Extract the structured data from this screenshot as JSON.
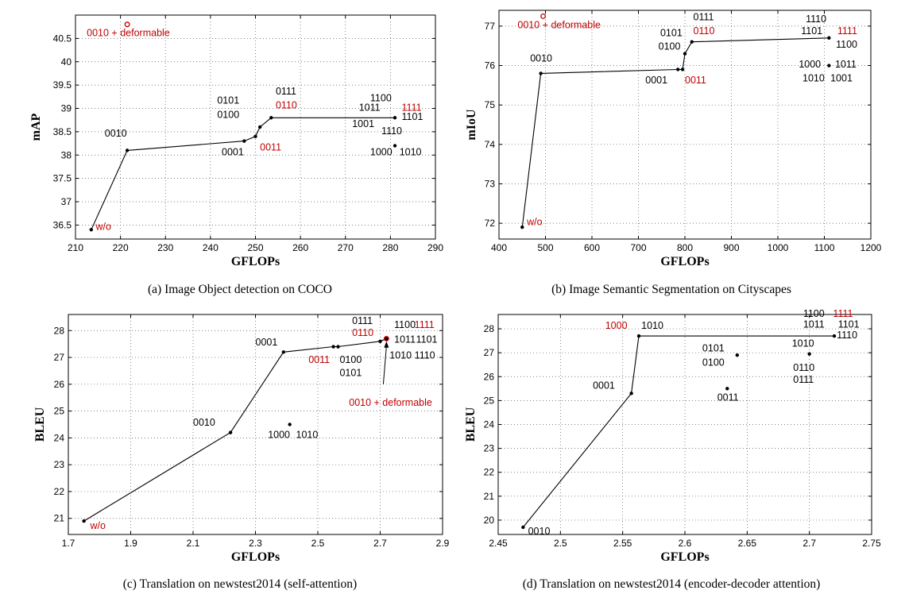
{
  "colors": {
    "black": "#000000",
    "red": "#c00000",
    "grid": "#555555"
  },
  "chart_data": [
    {
      "type": "line",
      "id": "a",
      "caption": "(a)  Image Object detection on COCO",
      "xlabel": "GFLOPs",
      "ylabel": "mAP",
      "xlim": [
        210,
        290
      ],
      "ylim": [
        36.2,
        41.0
      ],
      "xticks": [
        210,
        220,
        230,
        240,
        250,
        260,
        270,
        280,
        290
      ],
      "yticks": [
        36.5,
        37,
        37.5,
        38,
        38.5,
        39,
        39.5,
        40,
        40.5
      ],
      "grid": true,
      "line": [
        [
          213.5,
          36.4
        ],
        [
          221.5,
          38.1
        ],
        [
          247.5,
          38.3
        ],
        [
          250.0,
          38.4
        ],
        [
          251.0,
          38.6
        ],
        [
          253.5,
          38.8
        ],
        [
          281.0,
          38.8
        ]
      ],
      "points": [
        [
          213.5,
          36.4
        ],
        [
          221.5,
          38.1
        ],
        [
          247.5,
          38.3
        ],
        [
          250.0,
          38.4
        ],
        [
          251.0,
          38.6
        ],
        [
          253.5,
          38.8
        ],
        [
          281.0,
          38.8
        ],
        [
          281.0,
          38.2
        ]
      ],
      "special_points": [
        {
          "x": 221.5,
          "y": 40.8,
          "label": "0010 + deformable"
        }
      ],
      "labels": [
        {
          "text": "w/o",
          "x": 214.5,
          "y": 36.4,
          "color": "red"
        },
        {
          "text": "0010 + deformable",
          "x": 212.5,
          "y": 40.55,
          "color": "red"
        },
        {
          "text": "0010",
          "x": 216.5,
          "y": 38.4,
          "color": "black"
        },
        {
          "text": "0001",
          "x": 242.5,
          "y": 38.0,
          "color": "black"
        },
        {
          "text": "0011",
          "x": 251.0,
          "y": 38.1,
          "color": "red"
        },
        {
          "text": "0100",
          "x": 241.5,
          "y": 38.8,
          "color": "black"
        },
        {
          "text": "0101",
          "x": 241.5,
          "y": 39.1,
          "color": "black"
        },
        {
          "text": "0110",
          "x": 254.5,
          "y": 39.0,
          "color": "red"
        },
        {
          "text": "0111",
          "x": 254.5,
          "y": 39.3,
          "color": "black"
        },
        {
          "text": "1100",
          "x": 275.5,
          "y": 39.15,
          "color": "black"
        },
        {
          "text": "1011",
          "x": 273.0,
          "y": 38.95,
          "color": "black"
        },
        {
          "text": "1111",
          "x": 282.5,
          "y": 38.95,
          "color": "red"
        },
        {
          "text": "1001",
          "x": 271.5,
          "y": 38.6,
          "color": "black"
        },
        {
          "text": "1101",
          "x": 282.5,
          "y": 38.75,
          "color": "black"
        },
        {
          "text": "1110",
          "x": 278.0,
          "y": 38.45,
          "color": "black"
        },
        {
          "text": "1000",
          "x": 275.5,
          "y": 38.0,
          "color": "black"
        },
        {
          "text": "1010",
          "x": 282.0,
          "y": 38.0,
          "color": "black"
        }
      ]
    },
    {
      "type": "line",
      "id": "b",
      "caption": "(b)  Image Semantic Segmentation on Cityscapes",
      "xlabel": "GFLOPs",
      "ylabel": "mIoU",
      "xlim": [
        400,
        1200
      ],
      "ylim": [
        71.6,
        77.4
      ],
      "xticks": [
        400,
        500,
        600,
        700,
        800,
        900,
        1000,
        1100,
        1200
      ],
      "yticks": [
        72,
        73,
        74,
        75,
        76,
        77
      ],
      "grid": true,
      "line": [
        [
          450,
          71.9
        ],
        [
          490,
          75.8
        ],
        [
          785,
          75.9
        ],
        [
          795,
          75.9
        ],
        [
          800,
          76.3
        ],
        [
          815,
          76.6
        ],
        [
          1110,
          76.7
        ]
      ],
      "points": [
        [
          450,
          71.9
        ],
        [
          490,
          75.8
        ],
        [
          785,
          75.9
        ],
        [
          795,
          75.9
        ],
        [
          800,
          76.3
        ],
        [
          815,
          76.6
        ],
        [
          1110,
          76.7
        ],
        [
          1110,
          76.0
        ]
      ],
      "special_points": [
        {
          "x": 495,
          "y": 77.25,
          "label": "0010 + deformable"
        }
      ],
      "labels": [
        {
          "text": "w/o",
          "x": 460,
          "y": 71.95,
          "color": "red"
        },
        {
          "text": "0010 + deformable",
          "x": 440,
          "y": 76.95,
          "color": "red"
        },
        {
          "text": "0010",
          "x": 467,
          "y": 76.1,
          "color": "black"
        },
        {
          "text": "0001",
          "x": 715,
          "y": 75.55,
          "color": "black"
        },
        {
          "text": "0011",
          "x": 800,
          "y": 75.55,
          "color": "red"
        },
        {
          "text": "0100",
          "x": 743,
          "y": 76.4,
          "color": "black"
        },
        {
          "text": "0101",
          "x": 747,
          "y": 76.75,
          "color": "black"
        },
        {
          "text": "0110",
          "x": 818,
          "y": 76.8,
          "color": "red"
        },
        {
          "text": "0111",
          "x": 818,
          "y": 77.15,
          "color": "black"
        },
        {
          "text": "1110",
          "x": 1060,
          "y": 77.1,
          "color": "black"
        },
        {
          "text": "1101",
          "x": 1050,
          "y": 76.8,
          "color": "black"
        },
        {
          "text": "1111",
          "x": 1128,
          "y": 76.8,
          "color": "red"
        },
        {
          "text": "1100",
          "x": 1125,
          "y": 76.45,
          "color": "black"
        },
        {
          "text": "1000",
          "x": 1045,
          "y": 75.95,
          "color": "black"
        },
        {
          "text": "1011",
          "x": 1123,
          "y": 75.95,
          "color": "black"
        },
        {
          "text": "1010",
          "x": 1053,
          "y": 75.6,
          "color": "black"
        },
        {
          "text": "1001",
          "x": 1113,
          "y": 75.6,
          "color": "black"
        }
      ]
    },
    {
      "type": "line",
      "id": "c",
      "caption": "(c)  Translation on newstest2014 (self-attention)",
      "xlabel": "GFLOPs",
      "ylabel": "BLEU",
      "xlim": [
        1.7,
        2.9
      ],
      "ylim": [
        20.4,
        28.6
      ],
      "xticks": [
        1.7,
        1.9,
        2.1,
        2.3,
        2.5,
        2.7,
        2.9
      ],
      "yticks": [
        21,
        22,
        23,
        24,
        25,
        26,
        27,
        28
      ],
      "grid": true,
      "line": [
        [
          1.75,
          20.9
        ],
        [
          2.22,
          24.2
        ],
        [
          2.39,
          27.2
        ],
        [
          2.55,
          27.4
        ],
        [
          2.565,
          27.4
        ],
        [
          2.7,
          27.6
        ],
        [
          2.72,
          27.7
        ]
      ],
      "points": [
        [
          1.75,
          20.9
        ],
        [
          2.22,
          24.2
        ],
        [
          2.39,
          27.2
        ],
        [
          2.55,
          27.4
        ],
        [
          2.565,
          27.4
        ],
        [
          2.7,
          27.6
        ],
        [
          2.72,
          27.7
        ],
        [
          2.41,
          24.5
        ]
      ],
      "special_points": [
        {
          "x": 2.72,
          "y": 27.7,
          "label": "0010 + deformable"
        }
      ],
      "arrow": {
        "from": [
          2.71,
          26.0
        ],
        "to": [
          2.72,
          27.6
        ]
      },
      "labels": [
        {
          "text": "w/o",
          "x": 1.77,
          "y": 20.6,
          "color": "red"
        },
        {
          "text": "0010",
          "x": 2.1,
          "y": 24.45,
          "color": "black"
        },
        {
          "text": "0001",
          "x": 2.3,
          "y": 27.45,
          "color": "black"
        },
        {
          "text": "0011",
          "x": 2.47,
          "y": 26.8,
          "color": "red"
        },
        {
          "text": "0100",
          "x": 2.57,
          "y": 26.8,
          "color": "black"
        },
        {
          "text": "0101",
          "x": 2.57,
          "y": 26.3,
          "color": "black"
        },
        {
          "text": "0110",
          "x": 2.61,
          "y": 27.8,
          "color": "red"
        },
        {
          "text": "0111",
          "x": 2.61,
          "y": 28.25,
          "color": "black"
        },
        {
          "text": "1100",
          "x": 2.745,
          "y": 28.1,
          "color": "black"
        },
        {
          "text": "1111",
          "x": 2.81,
          "y": 28.1,
          "color": "red"
        },
        {
          "text": "1011",
          "x": 2.745,
          "y": 27.55,
          "color": "black"
        },
        {
          "text": "1101",
          "x": 2.815,
          "y": 27.55,
          "color": "black"
        },
        {
          "text": "1010",
          "x": 2.73,
          "y": 26.95,
          "color": "black"
        },
        {
          "text": "1110",
          "x": 2.81,
          "y": 26.95,
          "color": "black"
        },
        {
          "text": "0010 + deformable",
          "x": 2.6,
          "y": 25.2,
          "color": "red"
        },
        {
          "text": "1000",
          "x": 2.34,
          "y": 24.0,
          "color": "black"
        },
        {
          "text": "1010",
          "x": 2.43,
          "y": 24.0,
          "color": "black"
        }
      ]
    },
    {
      "type": "line",
      "id": "d",
      "caption": "(d)  Translation on newstest2014 (encoder-decoder attention)",
      "xlabel": "GFLOPs",
      "ylabel": "BLEU",
      "xlim": [
        2.45,
        2.75
      ],
      "ylim": [
        19.4,
        28.6
      ],
      "xticks": [
        2.45,
        2.5,
        2.55,
        2.6,
        2.65,
        2.7,
        2.75
      ],
      "yticks": [
        20,
        21,
        22,
        23,
        24,
        25,
        26,
        27,
        28
      ],
      "grid": true,
      "line": [
        [
          2.47,
          19.7
        ],
        [
          2.557,
          25.3
        ],
        [
          2.563,
          27.7
        ],
        [
          2.72,
          27.7
        ]
      ],
      "points": [
        [
          2.47,
          19.7
        ],
        [
          2.557,
          25.3
        ],
        [
          2.563,
          27.7
        ],
        [
          2.72,
          27.7
        ],
        [
          2.642,
          26.9
        ],
        [
          2.7,
          26.95
        ],
        [
          2.634,
          25.5
        ]
      ],
      "special_points": [],
      "labels": [
        {
          "text": "0010",
          "x": 2.474,
          "y": 19.4,
          "color": "black"
        },
        {
          "text": "0001",
          "x": 2.526,
          "y": 25.5,
          "color": "black"
        },
        {
          "text": "1000",
          "x": 2.536,
          "y": 28.0,
          "color": "red"
        },
        {
          "text": "1010",
          "x": 2.565,
          "y": 28.0,
          "color": "black"
        },
        {
          "text": "0101",
          "x": 2.614,
          "y": 27.05,
          "color": "black"
        },
        {
          "text": "0100",
          "x": 2.614,
          "y": 26.45,
          "color": "black"
        },
        {
          "text": "0011",
          "x": 2.626,
          "y": 25.0,
          "color": "black"
        },
        {
          "text": "0110",
          "x": 2.687,
          "y": 26.25,
          "color": "black"
        },
        {
          "text": "0111",
          "x": 2.687,
          "y": 25.75,
          "color": "black"
        },
        {
          "text": "1010",
          "x": 2.686,
          "y": 27.25,
          "color": "black"
        },
        {
          "text": "1100",
          "x": 2.695,
          "y": 28.5,
          "color": "black"
        },
        {
          "text": "1111",
          "x": 2.719,
          "y": 28.5,
          "color": "red"
        },
        {
          "text": "1011",
          "x": 2.695,
          "y": 28.05,
          "color": "black"
        },
        {
          "text": "1101",
          "x": 2.723,
          "y": 28.05,
          "color": "black"
        },
        {
          "text": "1110",
          "x": 2.722,
          "y": 27.6,
          "color": "black"
        }
      ]
    }
  ]
}
